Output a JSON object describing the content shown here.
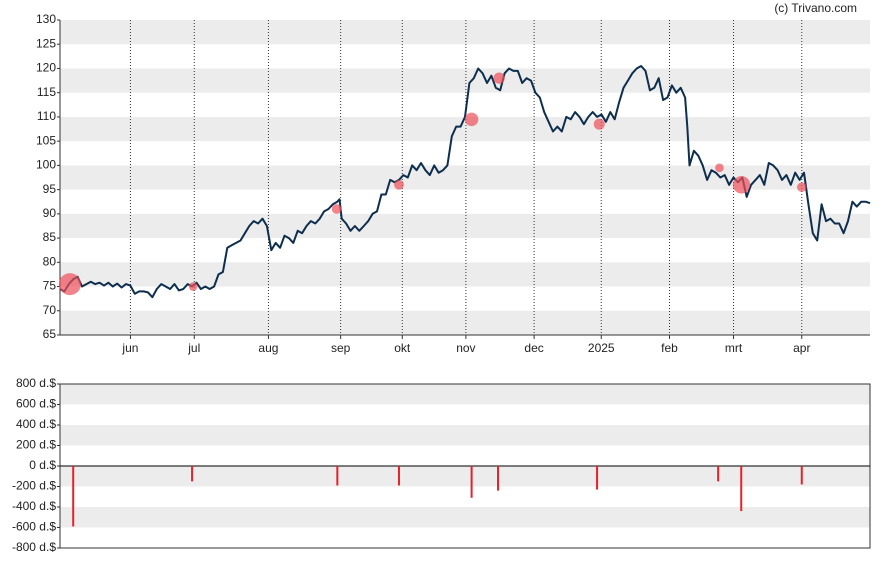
{
  "source": "(c) Trivano.com",
  "chart_data": [
    {
      "type": "line",
      "color": "#0d2e4c",
      "xlim": [
        0,
        368
      ],
      "xticks": [
        {
          "value": 32,
          "label": "jun"
        },
        {
          "value": 61,
          "label": "jul"
        },
        {
          "value": 94.7,
          "label": "aug"
        },
        {
          "value": 127.5,
          "label": "sep"
        },
        {
          "value": 155.5,
          "label": "okt"
        },
        {
          "value": 184.4,
          "label": "nov"
        },
        {
          "value": 215.4,
          "label": "dec"
        },
        {
          "value": 245.9,
          "label": "2025"
        },
        {
          "value": 276.9,
          "label": "feb"
        },
        {
          "value": 306,
          "label": "mrt"
        },
        {
          "value": 337,
          "label": "apr"
        }
      ],
      "ylim": [
        65,
        130
      ],
      "yticks": [
        65,
        70,
        75,
        80,
        85,
        90,
        95,
        100,
        105,
        110,
        115,
        120,
        125,
        130
      ],
      "grid": true,
      "x": [
        0,
        2,
        4,
        6,
        8,
        10,
        12,
        14,
        16,
        18,
        20,
        22,
        24,
        26,
        28,
        30,
        32,
        34,
        36,
        38,
        40,
        42,
        44,
        46,
        48,
        50,
        52,
        54,
        56,
        58,
        60,
        62,
        64,
        66,
        68,
        70,
        72,
        74,
        76,
        78,
        80,
        82,
        84,
        86,
        88,
        90,
        92,
        94,
        96,
        98,
        100,
        102,
        104,
        106,
        108,
        110,
        112,
        114,
        116,
        118,
        120,
        122,
        124,
        126,
        127,
        128,
        130,
        132,
        134,
        136,
        138,
        140,
        142,
        144,
        146,
        148,
        150,
        152,
        154,
        156,
        158,
        160,
        162,
        164,
        166,
        168,
        170,
        172,
        174,
        176,
        178,
        180,
        182,
        184,
        186,
        188,
        190,
        192,
        194,
        196,
        198,
        200,
        202,
        204,
        206,
        208,
        210,
        212,
        214,
        216,
        218,
        220,
        222,
        224,
        226,
        228,
        230,
        232,
        234,
        236,
        238,
        240,
        242,
        244,
        246,
        248,
        250,
        252,
        254,
        256,
        258,
        260,
        262,
        264,
        266,
        268,
        270,
        272,
        274,
        276,
        278,
        280,
        282,
        284,
        285,
        286,
        288,
        290,
        292,
        294,
        296,
        298,
        300,
        302,
        304,
        306,
        308,
        310,
        312,
        314,
        316,
        318,
        320,
        322,
        324,
        326,
        328,
        330,
        332,
        334,
        336,
        338,
        340,
        342,
        344,
        346,
        348,
        350,
        352,
        354,
        356,
        358,
        360,
        362,
        364,
        366,
        368
      ],
      "values": [
        74.5,
        74,
        75.5,
        76.5,
        77,
        75,
        75.5,
        76,
        75.5,
        75.8,
        75.2,
        75.8,
        75,
        75.6,
        74.8,
        75.5,
        75.2,
        73.5,
        74,
        74,
        73.8,
        72.8,
        74.5,
        75.5,
        75,
        74.5,
        75.5,
        74.2,
        74.5,
        75.5,
        75,
        75.8,
        74.5,
        75,
        74.5,
        75,
        77.5,
        78,
        83,
        83.5,
        84,
        84.5,
        86,
        87.5,
        88.5,
        88,
        89,
        87.5,
        82.5,
        84,
        83,
        85.5,
        85,
        84,
        86.5,
        86,
        87.5,
        88.5,
        88,
        89,
        90.5,
        91,
        92,
        92.5,
        93,
        89,
        88,
        86.5,
        87.5,
        86.5,
        87.5,
        88.5,
        90,
        90.5,
        94,
        94,
        97,
        96.5,
        97,
        98,
        97.5,
        100,
        99,
        100.5,
        99,
        98,
        100,
        98.5,
        99,
        100,
        106,
        108,
        108,
        110,
        117,
        118,
        120,
        119,
        117,
        118.5,
        116,
        115.5,
        119,
        120,
        119.5,
        119.5,
        117,
        118,
        117.5,
        115,
        114,
        111,
        109,
        107,
        108,
        107,
        110,
        109.5,
        111,
        110,
        108.5,
        110,
        111,
        110,
        110.5,
        109,
        111,
        109.5,
        113,
        116,
        117.5,
        119,
        120,
        120.5,
        119.5,
        115.5,
        116,
        118,
        113.5,
        114,
        116.5,
        115,
        116,
        114,
        108,
        100,
        103,
        102,
        100,
        97,
        99,
        98.5,
        97.5,
        98,
        96,
        97.5,
        96.5,
        97.5,
        93.5,
        96,
        97,
        98,
        96,
        100.5,
        100,
        99,
        97,
        98,
        96,
        98.5,
        97,
        98.5,
        92,
        86,
        84.5,
        92,
        88.5,
        89,
        88,
        88,
        86,
        88.5,
        92.5,
        91.5,
        92.5,
        92.5,
        92.2
      ],
      "markers": {
        "color": "#f0505a",
        "x": [
          4.5,
          60.5,
          125.7,
          154,
          187,
          199.5,
          245,
          299.6,
          309.6,
          337
        ],
        "values": [
          75.5,
          75,
          91,
          96,
          109.5,
          118,
          108.5,
          99.5,
          96,
          95.5
        ]
      }
    },
    {
      "type": "bar",
      "color": "#e8202a",
      "xlim": [
        0,
        368
      ],
      "ylim": [
        -800,
        800
      ],
      "yticks": [
        {
          "value": 800,
          "label": "800 d.$"
        },
        {
          "value": 600,
          "label": "600 d.$"
        },
        {
          "value": 400,
          "label": "400 d.$"
        },
        {
          "value": 200,
          "label": "200 d.$"
        },
        {
          "value": 0,
          "label": "0 d.$"
        },
        {
          "value": -200,
          "label": "-200 d.$"
        },
        {
          "value": -400,
          "label": "-400 d.$"
        },
        {
          "value": -600,
          "label": "-600 d.$"
        },
        {
          "value": -800,
          "label": "-800 d.$"
        }
      ],
      "grid": true,
      "x": [
        6,
        60,
        126,
        154,
        187,
        199,
        244,
        299,
        309.5,
        337
      ],
      "values": [
        -590,
        -150,
        -190,
        -190,
        -310,
        -240,
        -230,
        -150,
        -440,
        -180
      ]
    }
  ]
}
